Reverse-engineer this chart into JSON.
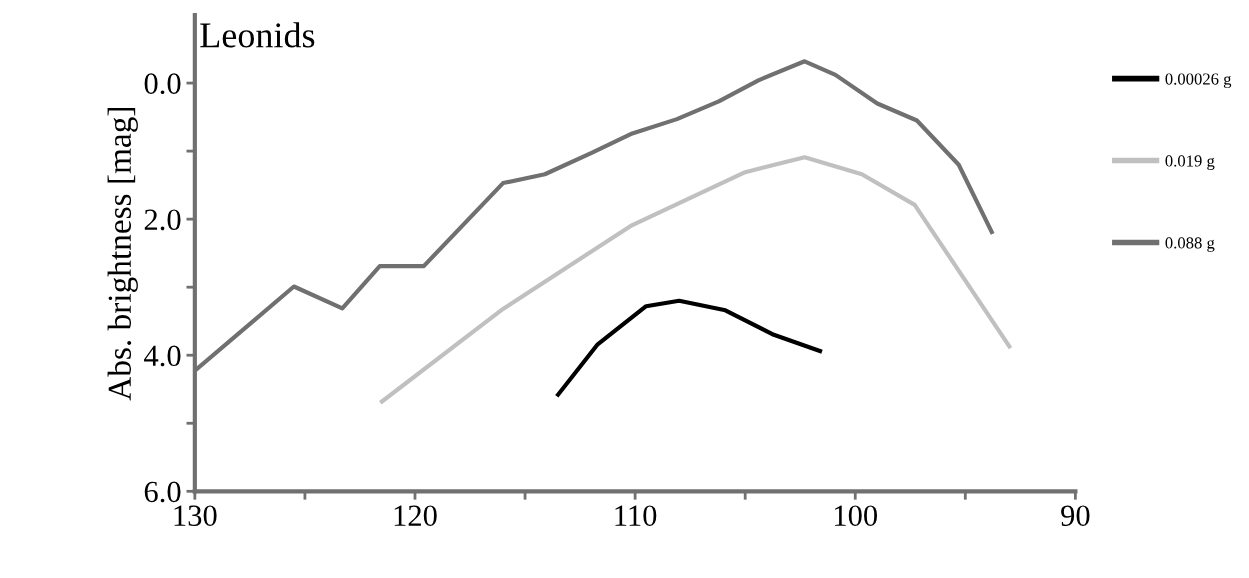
{
  "chart_data": {
    "type": "line",
    "title": "Leonids",
    "ylabel": "Abs. brightness [mag]",
    "xlim": [
      130,
      90
    ],
    "ylim": [
      6,
      -1
    ],
    "xticks": [
      130,
      {
        "value": 125,
        "label": null
      },
      120,
      {
        "value": 115,
        "label": null
      },
      110,
      {
        "value": 105,
        "label": null
      },
      100,
      {
        "value": 95,
        "label": null
      },
      90
    ],
    "yticks": [
      {
        "value": 0,
        "label": "0.0"
      },
      {
        "value": 1,
        "label": null
      },
      {
        "value": 2,
        "label": "2.0"
      },
      {
        "value": 3,
        "label": null
      },
      {
        "value": 4,
        "label": "4.0"
      },
      {
        "value": 5,
        "label": null
      },
      {
        "value": 6,
        "label": "6.0"
      }
    ],
    "grid": false,
    "legend": "right",
    "line_style": "solid",
    "marker": "none",
    "series": [
      {
        "name": "0.00026 g",
        "color": "#000000",
        "x": [
          113.5,
          111.7,
          109.5,
          108.0,
          105.9,
          103.7,
          101.6
        ],
        "values": [
          4.58,
          3.84,
          3.28,
          3.2,
          3.34,
          3.7,
          3.94
        ]
      },
      {
        "name": "0.019 g",
        "color": "#c0c0c0",
        "x": [
          121.5,
          116.0,
          110.2,
          105.0,
          102.3,
          99.7,
          97.3,
          93.0
        ],
        "values": [
          4.68,
          3.32,
          2.1,
          1.31,
          1.09,
          1.34,
          1.79,
          3.87
        ]
      },
      {
        "name": "0.088 g",
        "color": "#707070",
        "x": [
          129.9,
          125.5,
          123.3,
          121.6,
          119.6,
          116.0,
          114.1,
          112.0,
          110.2,
          108.1,
          106.2,
          104.4,
          102.3,
          100.9,
          99.0,
          97.2,
          95.3,
          93.8
        ],
        "values": [
          4.2,
          2.99,
          3.31,
          2.69,
          2.69,
          1.47,
          1.34,
          1.03,
          0.75,
          0.53,
          0.27,
          -0.04,
          -0.32,
          -0.12,
          0.3,
          0.55,
          1.2,
          2.19
        ]
      }
    ]
  }
}
